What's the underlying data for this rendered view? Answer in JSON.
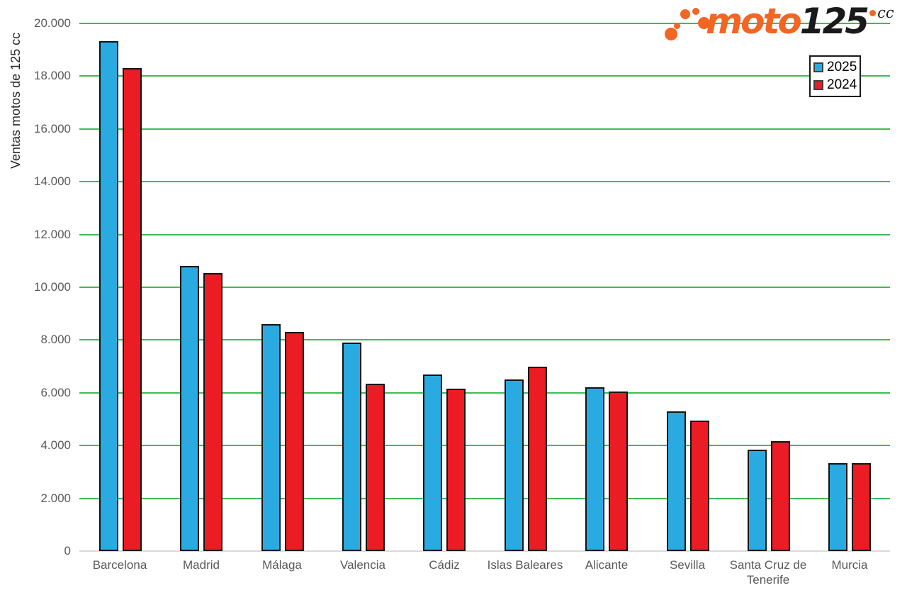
{
  "logo": {
    "moto": "moto",
    "n125": "125",
    "cc": "cc",
    "orange": "#F26522",
    "black": "#1A1A1A"
  },
  "legend": {
    "items": [
      {
        "label": "2025",
        "color": "#29ABE2"
      },
      {
        "label": "2024",
        "color": "#EC1C24"
      }
    ]
  },
  "chart_data": {
    "type": "bar",
    "title": "",
    "xlabel": "",
    "ylabel": "Ventas motos de 125 cc",
    "categories": [
      "Barcelona",
      "Madrid",
      "Málaga",
      "Valencia",
      "Cádiz",
      "Islas Baleares",
      "Alicante",
      "Sevilla",
      "Santa Cruz de Tenerife",
      "Murcia"
    ],
    "series": [
      {
        "name": "2025",
        "color": "#29ABE2",
        "values": [
          19330,
          10800,
          8600,
          7900,
          6700,
          6500,
          6200,
          5300,
          3850,
          3340
        ]
      },
      {
        "name": "2024",
        "color": "#EC1C24",
        "values": [
          18300,
          10550,
          8300,
          6350,
          6150,
          7000,
          6050,
          4950,
          4170,
          3340
        ]
      }
    ],
    "ylim": [
      0,
      20000
    ],
    "ytick_step": 2000,
    "ytick_labels": [
      "0",
      "2.000",
      "4.000",
      "6.000",
      "8.000",
      "10.000",
      "12.000",
      "14.000",
      "16.000",
      "18.000",
      "20.000"
    ],
    "grid": true,
    "gridline_color": "#3FBB57",
    "baseline_color": "#D9D9D9",
    "tick_text_color": "#595959",
    "legend_position": "top-right"
  }
}
